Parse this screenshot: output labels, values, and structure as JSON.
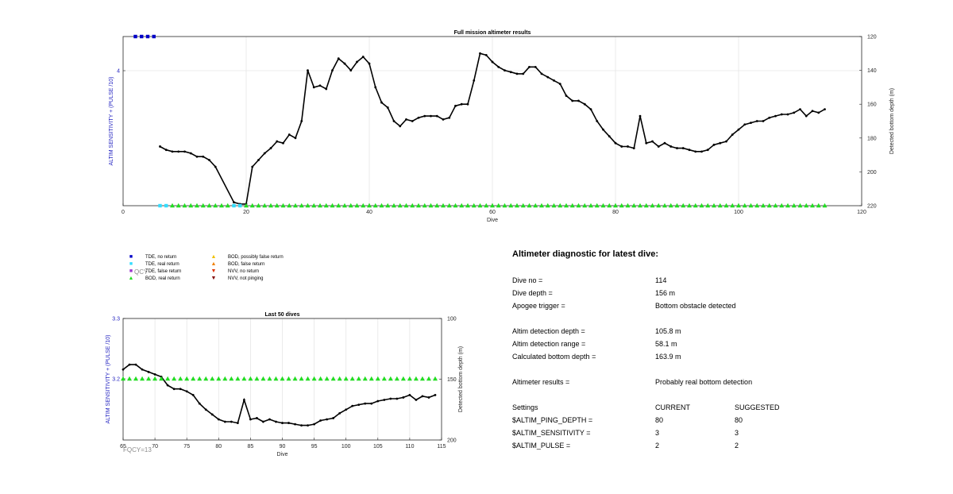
{
  "chart_data": [
    {
      "type": "line",
      "title": "Full mission altimeter results",
      "xlabel": "Dive",
      "ylabel_left": "ALTIM SENSITIVITY + (PULSE /10)",
      "ylabel_right": "Detected bottom depth (m)",
      "xlim": [
        0,
        120
      ],
      "x_ticks": [
        0,
        20,
        40,
        60,
        80,
        100,
        120
      ],
      "y_right_lim": [
        120,
        220
      ],
      "y_right_reversed": true,
      "y_right_ticks": [
        120,
        140,
        160,
        180,
        200,
        220
      ],
      "y_left_ticks": [
        4
      ],
      "grid": true,
      "series": [
        {
          "name": "Detected bottom depth",
          "color": "#000000",
          "x": [
            6,
            7,
            8,
            9,
            10,
            11,
            12,
            13,
            14,
            15,
            18,
            19,
            20,
            21,
            22,
            23,
            24,
            25,
            26,
            27,
            28,
            29,
            30,
            31,
            32,
            33,
            34,
            35,
            36,
            37,
            38,
            39,
            40,
            41,
            42,
            43,
            44,
            45,
            46,
            47,
            48,
            49,
            50,
            51,
            52,
            53,
            54,
            55,
            56,
            57,
            58,
            59,
            60,
            61,
            62,
            63,
            64,
            65,
            66,
            67,
            68,
            69,
            70,
            71,
            72,
            73,
            74,
            75,
            76,
            77,
            78,
            79,
            80,
            81,
            82,
            83,
            84,
            85,
            86,
            87,
            88,
            89,
            90,
            91,
            92,
            93,
            94,
            95,
            96,
            97,
            98,
            99,
            100,
            101,
            102,
            103,
            104,
            105,
            106,
            107,
            108,
            109,
            110,
            111,
            112,
            113,
            114
          ],
          "y": [
            185,
            187,
            188,
            188,
            188,
            189,
            191,
            191,
            193,
            197,
            218,
            219,
            219,
            197,
            193,
            189,
            186,
            182,
            183,
            178,
            180,
            170,
            140,
            150,
            149,
            151,
            140,
            133,
            136,
            140,
            135,
            132,
            136,
            150,
            159,
            162,
            170,
            173,
            169,
            170,
            168,
            167,
            167,
            167,
            169,
            168,
            161,
            160,
            160,
            146,
            130,
            131,
            135,
            138,
            140,
            141,
            142,
            142,
            138,
            138,
            142,
            144,
            146,
            148,
            155,
            158,
            158,
            160,
            163,
            170,
            175,
            179,
            183,
            185,
            185,
            186,
            167,
            183,
            182,
            185,
            183,
            185,
            186,
            186,
            187,
            188,
            188,
            187,
            184,
            183,
            182,
            178,
            175,
            172,
            171,
            170,
            170,
            168,
            167,
            166,
            166,
            165,
            163,
            167,
            164,
            165,
            163
          ]
        }
      ],
      "bottom_markers": [
        {
          "name": "TDE, no return",
          "x": [
            2,
            3,
            4,
            5
          ],
          "y_level": "top",
          "color": "#0000c8",
          "shape": "square"
        },
        {
          "name": "TDE, real return",
          "x": [
            6,
            7,
            18,
            19
          ],
          "y_level": "bottom",
          "color": "#33ddff",
          "shape": "square"
        },
        {
          "name": "BOD, real return",
          "x": [
            8,
            9,
            10,
            11,
            12,
            13,
            14,
            15,
            16,
            17,
            20,
            21,
            22,
            23,
            24,
            25,
            26,
            27,
            28,
            29,
            30,
            31,
            32,
            33,
            34,
            35,
            36,
            37,
            38,
            39,
            40,
            41,
            42,
            43,
            44,
            45,
            46,
            47,
            48,
            49,
            50,
            51,
            52,
            53,
            54,
            55,
            56,
            57,
            58,
            59,
            60,
            61,
            62,
            63,
            64,
            65,
            66,
            67,
            68,
            69,
            70,
            71,
            72,
            73,
            74,
            75,
            76,
            77,
            78,
            79,
            80,
            81,
            82,
            83,
            84,
            85,
            86,
            87,
            88,
            89,
            90,
            91,
            92,
            93,
            94,
            95,
            96,
            97,
            98,
            99,
            100,
            101,
            102,
            103,
            104,
            105,
            106,
            107,
            108,
            109,
            110,
            111,
            112,
            113,
            114
          ],
          "y_level": "bottom",
          "color": "#22dd22",
          "shape": "triangle"
        }
      ]
    },
    {
      "type": "line",
      "title": "Last 50 dives",
      "xlabel": "Dive",
      "ylabel_left": "ALTIM SENSITIVITY + (PULSE /10)",
      "ylabel_right": "Detected bottom depth (m)",
      "xlim": [
        65,
        115
      ],
      "x_ticks": [
        65,
        70,
        75,
        80,
        85,
        90,
        95,
        100,
        105,
        110,
        115
      ],
      "y_left_ticks": [
        3.2,
        3.3
      ],
      "y_right_lim": [
        100,
        200
      ],
      "y_right_reversed": true,
      "y_right_ticks": [
        100,
        150,
        200
      ],
      "grid": true,
      "series": [
        {
          "name": "Detected bottom depth",
          "color": "#000000",
          "x": [
            65,
            66,
            67,
            68,
            69,
            70,
            71,
            72,
            73,
            74,
            75,
            76,
            77,
            78,
            79,
            80,
            81,
            82,
            83,
            84,
            85,
            86,
            87,
            88,
            89,
            90,
            91,
            92,
            93,
            94,
            95,
            96,
            97,
            98,
            99,
            100,
            101,
            102,
            103,
            104,
            105,
            106,
            107,
            108,
            109,
            110,
            111,
            112,
            113,
            114
          ],
          "y": [
            142,
            138,
            138,
            142,
            144,
            146,
            148,
            155,
            158,
            158,
            160,
            163,
            170,
            175,
            179,
            183,
            185,
            185,
            186,
            167,
            183,
            182,
            185,
            183,
            185,
            186,
            186,
            187,
            188,
            188,
            187,
            184,
            183,
            182,
            178,
            175,
            172,
            171,
            170,
            170,
            168,
            167,
            166,
            166,
            165,
            163,
            167,
            164,
            165,
            163
          ]
        }
      ],
      "bottom_markers": [
        {
          "name": "BOD, real return",
          "x": [
            65,
            66,
            67,
            68,
            69,
            70,
            71,
            72,
            73,
            74,
            75,
            76,
            77,
            78,
            79,
            80,
            81,
            82,
            83,
            84,
            85,
            86,
            87,
            88,
            89,
            90,
            91,
            92,
            93,
            94,
            95,
            96,
            97,
            98,
            99,
            100,
            101,
            102,
            103,
            104,
            105,
            106,
            107,
            108,
            109,
            110,
            111,
            112,
            113,
            114
          ],
          "y_value_left": 3.2,
          "color": "#22dd22",
          "shape": "triangle"
        }
      ],
      "annotation": "FQCY=13"
    }
  ],
  "legend": {
    "items": [
      {
        "label": "TDE, no return",
        "color": "#0000c8",
        "glyph": "■"
      },
      {
        "label": "TDE, real return",
        "color": "#33ddff",
        "glyph": "■"
      },
      {
        "label": "TDE, false return",
        "color": "#9933cc",
        "glyph": "■"
      },
      {
        "label": "BOD, real return",
        "color": "#22dd22",
        "glyph": "▲"
      },
      {
        "label": "BOD, possibly false return",
        "color": "#f0c000",
        "glyph": "▲"
      },
      {
        "label": "BOD, false return",
        "color": "#f08000",
        "glyph": "▲"
      },
      {
        "label": "NVV, no return",
        "color": "#dd3300",
        "glyph": "▼"
      },
      {
        "label": "NVV, not pinging",
        "color": "#800000",
        "glyph": "▼"
      }
    ],
    "overlay_text": "QCY"
  },
  "diagnostic": {
    "title": "Altimeter diagnostic for latest dive:",
    "rows": [
      {
        "label": "Dive no =",
        "value": "114"
      },
      {
        "label": "Dive depth =",
        "value": "156 m"
      },
      {
        "label": "Apogee trigger =",
        "value": "Bottom obstacle detected"
      },
      {
        "label": "Altim detection depth =",
        "value": "105.8 m"
      },
      {
        "label": "Altim detection range =",
        "value": "58.1 m"
      },
      {
        "label": "Calculated bottom depth =",
        "value": "163.9 m"
      },
      {
        "label": "Altimeter results =",
        "value": "Probably real bottom detection"
      }
    ],
    "settings_header": {
      "label": "Settings",
      "current": "CURRENT",
      "suggested": "SUGGESTED"
    },
    "settings": [
      {
        "label": "$ALTIM_PING_DEPTH =",
        "current": "80",
        "suggested": "80"
      },
      {
        "label": "$ALTIM_SENSITIVITY =",
        "current": "3",
        "suggested": "3"
      },
      {
        "label": "$ALTIM_PULSE =",
        "current": "2",
        "suggested": "2"
      }
    ]
  }
}
